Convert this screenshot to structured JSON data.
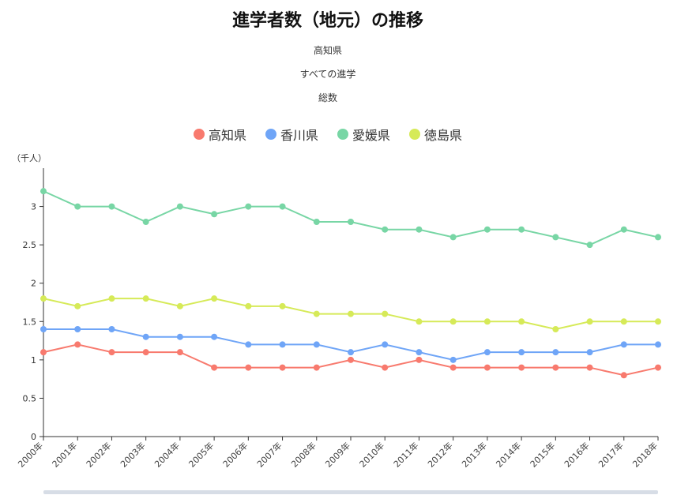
{
  "header": {
    "title": "進学者数（地元）の推移",
    "subtitle_1": "高知県",
    "subtitle_2": "すべての進学",
    "subtitle_3": "総数"
  },
  "chart_data": {
    "type": "line",
    "unit_label": "（千人）",
    "categories": [
      "2000年",
      "2001年",
      "2002年",
      "2003年",
      "2004年",
      "2005年",
      "2006年",
      "2007年",
      "2008年",
      "2009年",
      "2010年",
      "2011年",
      "2012年",
      "2013年",
      "2014年",
      "2015年",
      "2016年",
      "2017年",
      "2018年"
    ],
    "ylim": [
      0,
      3.5
    ],
    "yticks": [
      0,
      0.5,
      1,
      1.5,
      2,
      2.5,
      3
    ],
    "ytick_labels": [
      "0",
      "0.5",
      "1",
      "1.5",
      "2",
      "2.5",
      "3"
    ],
    "legend_position": "top-center",
    "grid": false,
    "series": [
      {
        "name": "高知県",
        "color": "#f87a6e",
        "values": [
          1.1,
          1.2,
          1.1,
          1.1,
          1.1,
          0.9,
          0.9,
          0.9,
          0.9,
          1.0,
          0.9,
          1.0,
          0.9,
          0.9,
          0.9,
          0.9,
          0.9,
          0.8,
          0.9
        ]
      },
      {
        "name": "香川県",
        "color": "#6fa5f7",
        "values": [
          1.4,
          1.4,
          1.4,
          1.3,
          1.3,
          1.3,
          1.2,
          1.2,
          1.2,
          1.1,
          1.2,
          1.1,
          1.0,
          1.1,
          1.1,
          1.1,
          1.1,
          1.2,
          1.2
        ]
      },
      {
        "name": "愛媛県",
        "color": "#78d6a5",
        "values": [
          3.2,
          3.0,
          3.0,
          2.8,
          3.0,
          2.9,
          3.0,
          3.0,
          2.8,
          2.8,
          2.7,
          2.7,
          2.6,
          2.7,
          2.7,
          2.6,
          2.5,
          2.7,
          2.6
        ]
      },
      {
        "name": "徳島県",
        "color": "#d6ea58",
        "values": [
          1.8,
          1.7,
          1.8,
          1.8,
          1.7,
          1.8,
          1.7,
          1.7,
          1.6,
          1.6,
          1.6,
          1.5,
          1.5,
          1.5,
          1.5,
          1.4,
          1.5,
          1.5,
          1.5
        ]
      }
    ]
  }
}
